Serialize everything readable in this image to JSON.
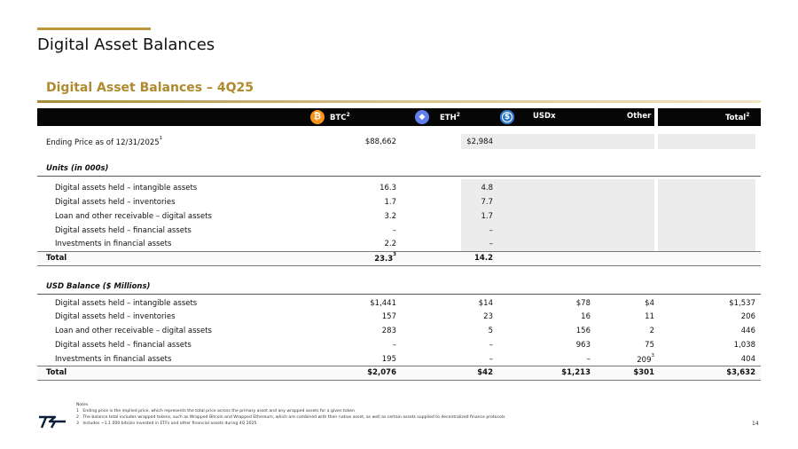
{
  "page_title": "Digital Asset Balances",
  "section_title": "Digital Asset Balances – 4Q25",
  "columns": {
    "btc": {
      "label": "BTC",
      "sup": "2",
      "icon": "bitcoin-icon",
      "color": "#f7931a"
    },
    "eth": {
      "label": "ETH",
      "sup": "2",
      "icon": "ethereum-icon",
      "color": "#627eea"
    },
    "usdx": {
      "label": "USDx",
      "icon": "usd-coin-icon",
      "color": "#2775ca"
    },
    "other": {
      "label": "Other"
    },
    "total": {
      "label": "Total",
      "sup": "2"
    }
  },
  "ending_price": {
    "label": "Ending Price as of 12/31/2025",
    "sup": "1",
    "btc": "$88,662",
    "eth": "$2,984"
  },
  "units": {
    "heading": "Units (in 000s)",
    "rows": [
      {
        "label": "Digital assets held – intangible assets",
        "btc": "16.3",
        "eth": "4.8"
      },
      {
        "label": "Digital assets held – inventories",
        "btc": "1.7",
        "eth": "7.7"
      },
      {
        "label": "Loan and other receivable – digital assets",
        "btc": "3.2",
        "eth": "1.7"
      },
      {
        "label": "Digital assets held – financial assets",
        "btc": "–",
        "eth": "–"
      },
      {
        "label": "Investments in financial assets",
        "btc": "2.2",
        "eth": "–"
      }
    ],
    "total": {
      "label": "Total",
      "btc": "23.3",
      "btc_sup": "3",
      "eth": "14.2"
    }
  },
  "usd": {
    "heading": "USD Balance ($ Millions)",
    "rows": [
      {
        "label": "Digital assets held – intangible assets",
        "btc": "$1,441",
        "eth": "$14",
        "usdx": "$78",
        "other": "$4",
        "total": "$1,537"
      },
      {
        "label": "Digital assets held – inventories",
        "btc": "157",
        "eth": "23",
        "usdx": "16",
        "other": "11",
        "total": "206"
      },
      {
        "label": "Loan and other receivable – digital assets",
        "btc": "283",
        "eth": "5",
        "usdx": "156",
        "other": "2",
        "total": "446"
      },
      {
        "label": "Digital assets held – financial assets",
        "btc": "–",
        "eth": "–",
        "usdx": "963",
        "other": "75",
        "total": "1,038"
      },
      {
        "label": "Investments in financial assets",
        "btc": "195",
        "eth": "–",
        "usdx": "–",
        "other": "209",
        "other_sup": "3",
        "total": "404"
      }
    ],
    "total": {
      "label": "Total",
      "btc": "$2,076",
      "eth": "$42",
      "usdx": "$1,213",
      "other": "$301",
      "total": "$3,632"
    }
  },
  "notes": {
    "heading": "Notes",
    "items": [
      {
        "num": "1",
        "text": "Ending price is the implied price, which represents the total price across the primary asset and any wrapped assets for a given token"
      },
      {
        "num": "2",
        "text": "The balance total includes wrapped tokens, such as Wrapped Bitcoin and Wrapped Ethereum, which are combined with their native asset, as well as certain assets supplied to decentralized finance protocols"
      },
      {
        "num": "3",
        "text": "Includes ~1.1 000 bitcoin invested in ETFs and other financial assets during 4Q 2025"
      }
    ]
  },
  "page_number": "14",
  "colors": {
    "accent_gold": "#b08a2e",
    "header_black": "#060606",
    "grey_fill": "#ececec"
  }
}
